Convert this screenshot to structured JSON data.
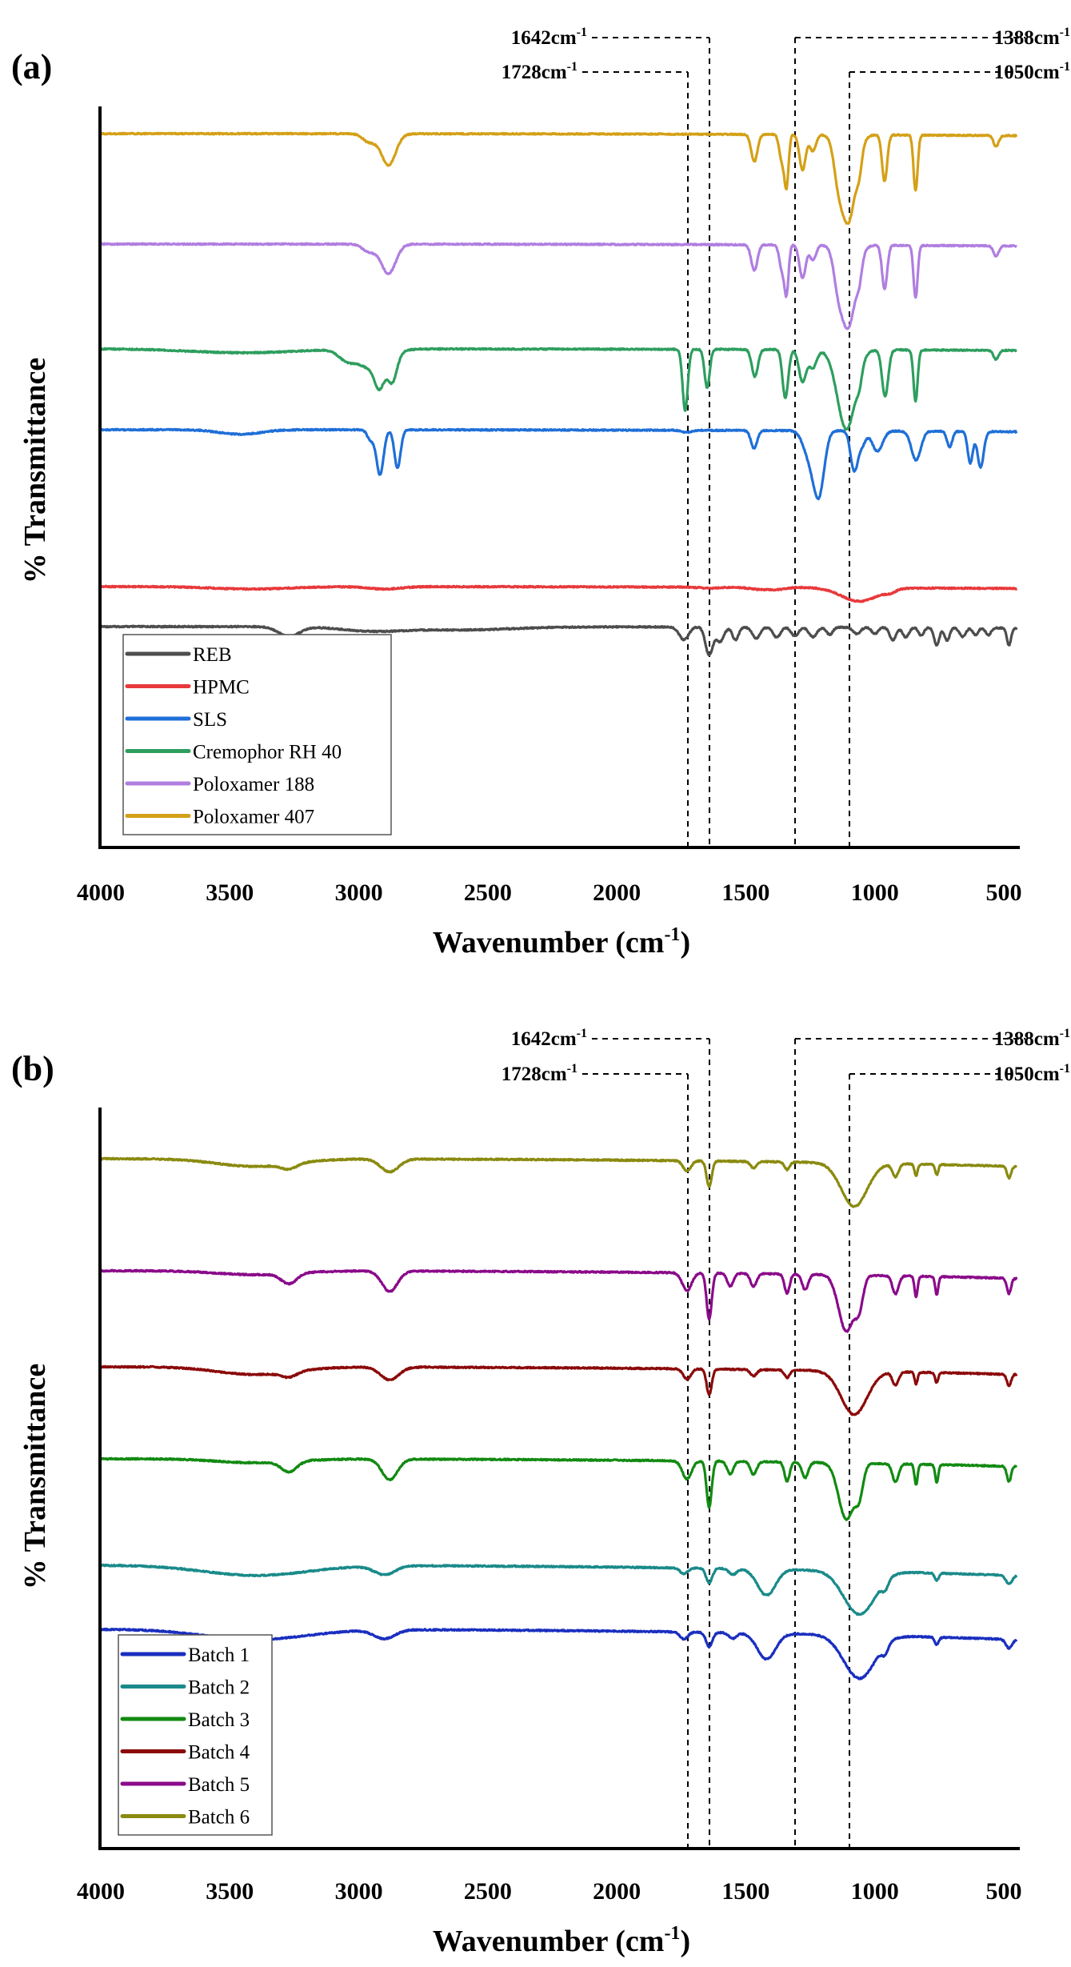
{
  "chart_data": [
    {
      "type": "line",
      "panel_label": "(a)",
      "title": "",
      "xlabel": "Wavenumber (cm-1)",
      "xlabel_main": "Wavenumber (cm",
      "xlabel_sup": "-1",
      "xlabel_close": ")",
      "ylabel": "% Transmittance",
      "xlim": [
        4000,
        450
      ],
      "x_reversed": true,
      "xticks": [
        4000,
        3500,
        3000,
        2500,
        2000,
        1500,
        1000,
        500
      ],
      "xtick_labels": [
        "4000",
        "3500",
        "3000",
        "2500",
        "2000",
        "1500",
        "1000",
        "500"
      ],
      "yticks": [],
      "grid": false,
      "legend_position": "bottom-left",
      "annotations": [
        {
          "value": 1642,
          "label": "1642cm",
          "sup": "-1",
          "side": "left",
          "row": 1
        },
        {
          "value": 1728,
          "label": "1728cm",
          "sup": "-1",
          "side": "left",
          "row": 2
        },
        {
          "value": 1388,
          "label": "1388cm",
          "sup": "-1",
          "side": "right",
          "row": 1
        },
        {
          "value": 1050,
          "label": "1050cm",
          "sup": "-1",
          "side": "right",
          "row": 2
        }
      ],
      "series": [
        {
          "name": "REB",
          "color": "#4d4d4d",
          "baseline": 0.0,
          "end_offset": -0.3,
          "peaks": [
            [
              3270,
              40,
              1.2
            ],
            [
              2950,
              120,
              0.5
            ],
            [
              2600,
              200,
              0.4
            ],
            [
              1740,
              18,
              1.6
            ],
            [
              1642,
              14,
              3.5
            ],
            [
              1600,
              15,
              1.8
            ],
            [
              1540,
              12,
              1.6
            ],
            [
              1460,
              15,
              1.4
            ],
            [
              1380,
              14,
              1.3
            ],
            [
              1310,
              14,
              1.1
            ],
            [
              1240,
              15,
              1.2
            ],
            [
              1175,
              12,
              0.9
            ],
            [
              1070,
              14,
              0.8
            ],
            [
              1000,
              12,
              0.8
            ],
            [
              930,
              12,
              1.6
            ],
            [
              880,
              12,
              1.2
            ],
            [
              820,
              10,
              1.0
            ],
            [
              760,
              10,
              2.2
            ],
            [
              720,
              10,
              1.6
            ],
            [
              660,
              12,
              1.1
            ],
            [
              610,
              10,
              0.9
            ],
            [
              560,
              10,
              0.9
            ],
            [
              480,
              8,
              2.2
            ]
          ]
        },
        {
          "name": "HPMC",
          "color": "#e8393b",
          "baseline": 0.0,
          "end_offset": -0.35,
          "peaks": [
            [
              3420,
              150,
              0.25
            ],
            [
              2900,
              60,
              0.25
            ],
            [
              1640,
              40,
              0.1
            ],
            [
              1450,
              40,
              0.2
            ],
            [
              1380,
              30,
              0.2
            ],
            [
              1060,
              70,
              1.4
            ],
            [
              940,
              20,
              0.3
            ]
          ]
        },
        {
          "name": "SLS",
          "color": "#1f6fd8",
          "baseline": 0.0,
          "end_offset": -0.3,
          "peaks": [
            [
              3460,
              80,
              0.4
            ],
            [
              2955,
              12,
              0.9
            ],
            [
              2918,
              14,
              4.0
            ],
            [
              2850,
              12,
              3.4
            ],
            [
              1728,
              20,
              0.2
            ],
            [
              1468,
              12,
              1.6
            ],
            [
              1250,
              25,
              2.5
            ],
            [
              1215,
              20,
              5.0
            ],
            [
              1080,
              14,
              3.5
            ],
            [
              1050,
              14,
              1.2
            ],
            [
              990,
              20,
              1.8
            ],
            [
              840,
              18,
              2.6
            ],
            [
              710,
              10,
              1.4
            ],
            [
              630,
              10,
              2.8
            ],
            [
              590,
              12,
              3.2
            ]
          ]
        },
        {
          "name": "Cremophor RH 40",
          "color": "#2e9e5e",
          "baseline": 0.0,
          "end_offset": -0.2,
          "peaks": [
            [
              3450,
              200,
              0.3
            ],
            [
              3050,
              30,
              0.6
            ],
            [
              2950,
              60,
              1.5
            ],
            [
              2920,
              18,
              1.8
            ],
            [
              2870,
              18,
              2.0
            ],
            [
              1735,
              10,
              4.8
            ],
            [
              1650,
              10,
              3.0
            ],
            [
              1465,
              12,
              2.1
            ],
            [
              1350,
              10,
              2.7
            ],
            [
              1340,
              10,
              1.5
            ],
            [
              1280,
              14,
              2.5
            ],
            [
              1240,
              15,
              1.4
            ],
            [
              1110,
              35,
              6.2
            ],
            [
              1060,
              10,
              1.0
            ],
            [
              960,
              12,
              3.6
            ],
            [
              842,
              8,
              4.0
            ],
            [
              530,
              10,
              0.7
            ]
          ]
        },
        {
          "name": "Poloxamer 188",
          "color": "#b07ee0",
          "baseline": 0.0,
          "end_offset": -0.25,
          "peaks": [
            [
              2885,
              28,
              2.3
            ],
            [
              2960,
              25,
              0.6
            ],
            [
              1467,
              12,
              2.0
            ],
            [
              1360,
              10,
              1.9
            ],
            [
              1342,
              8,
              3.6
            ],
            [
              1280,
              12,
              2.6
            ],
            [
              1240,
              12,
              1.2
            ],
            [
              1145,
              15,
              1.4
            ],
            [
              1105,
              30,
              6.5
            ],
            [
              1060,
              10,
              1.2
            ],
            [
              962,
              10,
              3.4
            ],
            [
              842,
              8,
              4.1
            ],
            [
              530,
              10,
              0.8
            ]
          ]
        },
        {
          "name": "Poloxamer 407",
          "color": "#d4a017",
          "baseline": 0.0,
          "end_offset": -0.25,
          "peaks": [
            [
              2885,
              28,
              2.3
            ],
            [
              2960,
              25,
              0.6
            ],
            [
              1467,
              12,
              2.0
            ],
            [
              1360,
              10,
              1.9
            ],
            [
              1342,
              8,
              3.6
            ],
            [
              1280,
              12,
              2.6
            ],
            [
              1240,
              12,
              1.2
            ],
            [
              1145,
              15,
              1.4
            ],
            [
              1105,
              30,
              6.5
            ],
            [
              1060,
              10,
              1.2
            ],
            [
              962,
              10,
              3.4
            ],
            [
              842,
              8,
              4.1
            ],
            [
              530,
              10,
              0.8
            ]
          ]
        }
      ]
    },
    {
      "type": "line",
      "panel_label": "(b)",
      "title": "",
      "xlabel": "Wavenumber (cm-1)",
      "xlabel_main": "Wavenumber (cm",
      "xlabel_sup": "-1",
      "xlabel_close": ")",
      "ylabel": "% Transmittance",
      "xlim": [
        4000,
        450
      ],
      "x_reversed": true,
      "xticks": [
        4000,
        3500,
        3000,
        2500,
        2000,
        1500,
        1000,
        500
      ],
      "xtick_labels": [
        "4000",
        "3500",
        "3000",
        "2500",
        "2000",
        "1500",
        "1000",
        "500"
      ],
      "yticks": [],
      "grid": false,
      "legend_position": "bottom-left",
      "annotations": [
        {
          "value": 1642,
          "label": "1642cm",
          "sup": "-1",
          "side": "left",
          "row": 1
        },
        {
          "value": 1728,
          "label": "1728cm",
          "sup": "-1",
          "side": "left",
          "row": 2
        },
        {
          "value": 1388,
          "label": "1388cm",
          "sup": "-1",
          "side": "right",
          "row": 1
        },
        {
          "value": 1050,
          "label": "1050cm",
          "sup": "-1",
          "side": "right",
          "row": 2
        }
      ],
      "series": [
        {
          "name": "Batch 1",
          "color": "#1a2fbf",
          "baseline": 0.0,
          "end_offset": -1.2,
          "peaks": [
            [
              3400,
              200,
              0.7
            ],
            [
              2900,
              40,
              0.6
            ],
            [
              1740,
              15,
              0.5
            ],
            [
              1642,
              12,
              1.0
            ],
            [
              1550,
              15,
              0.4
            ],
            [
              1420,
              35,
              1.8
            ],
            [
              1060,
              60,
              3.0
            ],
            [
              960,
              12,
              0.6
            ],
            [
              760,
              8,
              0.5
            ],
            [
              480,
              12,
              0.6
            ]
          ]
        },
        {
          "name": "Batch 2",
          "color": "#1a8a8a",
          "baseline": 0.0,
          "end_offset": -1.2,
          "peaks": [
            [
              3400,
              200,
              0.7
            ],
            [
              2900,
              40,
              0.6
            ],
            [
              1740,
              15,
              0.4
            ],
            [
              1642,
              12,
              1.0
            ],
            [
              1550,
              15,
              0.4
            ],
            [
              1420,
              35,
              1.8
            ],
            [
              1060,
              60,
              3.0
            ],
            [
              960,
              12,
              0.6
            ],
            [
              760,
              8,
              0.5
            ],
            [
              480,
              12,
              0.6
            ]
          ]
        },
        {
          "name": "Batch 3",
          "color": "#128a12",
          "baseline": 0.0,
          "end_offset": -1.0,
          "peaks": [
            [
              3400,
              150,
              0.3
            ],
            [
              3270,
              30,
              0.8
            ],
            [
              2880,
              30,
              1.6
            ],
            [
              1728,
              18,
              1.4
            ],
            [
              1642,
              10,
              3.6
            ],
            [
              1560,
              12,
              1.0
            ],
            [
              1470,
              12,
              1.0
            ],
            [
              1340,
              10,
              1.5
            ],
            [
              1270,
              12,
              1.2
            ],
            [
              1110,
              30,
              4.4
            ],
            [
              1060,
              15,
              2.0
            ],
            [
              920,
              12,
              1.4
            ],
            [
              840,
              6,
              1.6
            ],
            [
              760,
              6,
              1.4
            ],
            [
              480,
              8,
              1.2
            ]
          ]
        },
        {
          "name": "Batch 4",
          "color": "#8b0a0a",
          "baseline": 0.0,
          "end_offset": -1.0,
          "peaks": [
            [
              3400,
              150,
              0.6
            ],
            [
              3270,
              30,
              0.4
            ],
            [
              2880,
              35,
              1.0
            ],
            [
              1728,
              15,
              0.8
            ],
            [
              1642,
              10,
              2.0
            ],
            [
              1470,
              12,
              0.5
            ],
            [
              1340,
              10,
              0.6
            ],
            [
              1080,
              50,
              3.4
            ],
            [
              920,
              12,
              1.0
            ],
            [
              840,
              6,
              0.9
            ],
            [
              760,
              6,
              0.8
            ],
            [
              480,
              8,
              0.9
            ]
          ]
        },
        {
          "name": "Batch 5",
          "color": "#8a0a8a",
          "baseline": 0.0,
          "end_offset": -1.0,
          "peaks": [
            [
              3400,
              150,
              0.3
            ],
            [
              3270,
              30,
              0.8
            ],
            [
              2880,
              30,
              1.6
            ],
            [
              1728,
              18,
              1.4
            ],
            [
              1642,
              10,
              3.6
            ],
            [
              1560,
              12,
              1.0
            ],
            [
              1470,
              12,
              1.0
            ],
            [
              1340,
              10,
              1.5
            ],
            [
              1270,
              12,
              1.2
            ],
            [
              1110,
              30,
              4.4
            ],
            [
              1060,
              15,
              2.0
            ],
            [
              920,
              12,
              1.4
            ],
            [
              840,
              6,
              1.6
            ],
            [
              760,
              6,
              1.4
            ],
            [
              480,
              8,
              1.2
            ]
          ]
        },
        {
          "name": "Batch 6",
          "color": "#8a8a10",
          "baseline": 0.0,
          "end_offset": -1.0,
          "peaks": [
            [
              3400,
              150,
              0.6
            ],
            [
              3270,
              30,
              0.4
            ],
            [
              2880,
              35,
              1.0
            ],
            [
              1728,
              15,
              0.8
            ],
            [
              1642,
              10,
              2.0
            ],
            [
              1470,
              12,
              0.5
            ],
            [
              1340,
              10,
              0.6
            ],
            [
              1080,
              50,
              3.4
            ],
            [
              920,
              12,
              1.0
            ],
            [
              840,
              6,
              0.9
            ],
            [
              760,
              6,
              0.8
            ],
            [
              480,
              8,
              0.9
            ]
          ]
        }
      ]
    }
  ]
}
